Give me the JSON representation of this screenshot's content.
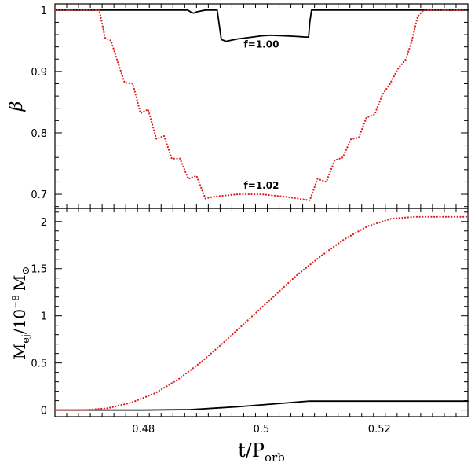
{
  "chart_data": [
    {
      "type": "line",
      "panel": "top",
      "ylabel": "β",
      "xlim": [
        0.465,
        0.535
      ],
      "ylim": [
        0.677,
        1.01
      ],
      "yticks": [
        {
          "v": 0.7,
          "label": "0.7"
        },
        {
          "v": 0.8,
          "label": "0.8"
        },
        {
          "v": 0.9,
          "label": "0.9"
        },
        {
          "v": 1.0,
          "label": "1"
        }
      ],
      "annotations": [
        {
          "text": "f=1.00",
          "x": 0.5,
          "y": 0.939
        },
        {
          "text": "f=1.02",
          "x": 0.5,
          "y": 0.709
        }
      ],
      "series": [
        {
          "name": "f=1.00",
          "color": "#000000",
          "style": "solid",
          "x": [
            0.465,
            0.4875,
            0.488,
            0.4885,
            0.489,
            0.4905,
            0.4915,
            0.4925,
            0.4932,
            0.494,
            0.496,
            0.4985,
            0.5,
            0.5015,
            0.504,
            0.506,
            0.5075,
            0.508,
            0.5082,
            0.5085,
            0.535
          ],
          "y": [
            1.0,
            1.0,
            0.997,
            0.995,
            0.997,
            1.0,
            1.0,
            1.0,
            0.952,
            0.949,
            0.953,
            0.956,
            0.958,
            0.959,
            0.958,
            0.957,
            0.956,
            0.956,
            0.98,
            1.0,
            1.0
          ]
        },
        {
          "name": "f=1.02",
          "color": "#e02020",
          "style": "dotted",
          "x": [
            0.465,
            0.4725,
            0.4735,
            0.4745,
            0.4755,
            0.4768,
            0.4782,
            0.4795,
            0.4808,
            0.4822,
            0.4835,
            0.4848,
            0.4862,
            0.4876,
            0.489,
            0.4905,
            0.4918,
            0.496,
            0.5,
            0.504,
            0.5082,
            0.5095,
            0.511,
            0.5124,
            0.5138,
            0.5152,
            0.5165,
            0.5178,
            0.5192,
            0.5205,
            0.5218,
            0.5232,
            0.5245,
            0.5255,
            0.5265,
            0.5275,
            0.535
          ],
          "y": [
            1.0,
            1.0,
            0.955,
            0.95,
            0.92,
            0.882,
            0.88,
            0.832,
            0.838,
            0.79,
            0.795,
            0.758,
            0.758,
            0.725,
            0.73,
            0.693,
            0.696,
            0.7,
            0.7,
            0.696,
            0.69,
            0.725,
            0.72,
            0.755,
            0.76,
            0.79,
            0.792,
            0.825,
            0.83,
            0.862,
            0.88,
            0.905,
            0.92,
            0.95,
            0.99,
            1.0,
            1.0
          ]
        }
      ]
    },
    {
      "type": "line",
      "panel": "bottom",
      "ylabel": "M",
      "ylabel_sub": "ej",
      "ylabel_rest": "/10",
      "ylabel_exp": "−8",
      "ylabel_unit": "M",
      "ylabel_sun": "⊙",
      "xlabel": "t/P",
      "xlabel_sub": "orb",
      "xlim": [
        0.465,
        0.535
      ],
      "ylim": [
        -0.07,
        2.14
      ],
      "xticks": [
        {
          "v": 0.48,
          "label": "0.48"
        },
        {
          "v": 0.5,
          "label": "0.5"
        },
        {
          "v": 0.52,
          "label": "0.52"
        }
      ],
      "yticks": [
        {
          "v": 0,
          "label": "0"
        },
        {
          "v": 0.5,
          "label": "0.5"
        },
        {
          "v": 1.0,
          "label": "1"
        },
        {
          "v": 1.5,
          "label": "1.5"
        },
        {
          "v": 2.0,
          "label": "2"
        }
      ],
      "series": [
        {
          "name": "f=1.00",
          "color": "#000000",
          "style": "solid",
          "x": [
            0.465,
            0.48,
            0.488,
            0.492,
            0.496,
            0.5,
            0.504,
            0.508,
            0.535
          ],
          "y": [
            0.0,
            0.0,
            0.005,
            0.02,
            0.035,
            0.055,
            0.075,
            0.095,
            0.095
          ]
        },
        {
          "name": "f=1.02",
          "color": "#e02020",
          "style": "dotted",
          "x": [
            0.465,
            0.47,
            0.474,
            0.478,
            0.482,
            0.486,
            0.49,
            0.494,
            0.498,
            0.502,
            0.506,
            0.51,
            0.514,
            0.518,
            0.522,
            0.526,
            0.535
          ],
          "y": [
            0.0,
            0.0,
            0.02,
            0.08,
            0.18,
            0.33,
            0.52,
            0.74,
            0.97,
            1.2,
            1.43,
            1.63,
            1.81,
            1.95,
            2.03,
            2.05,
            2.05
          ]
        }
      ]
    }
  ]
}
